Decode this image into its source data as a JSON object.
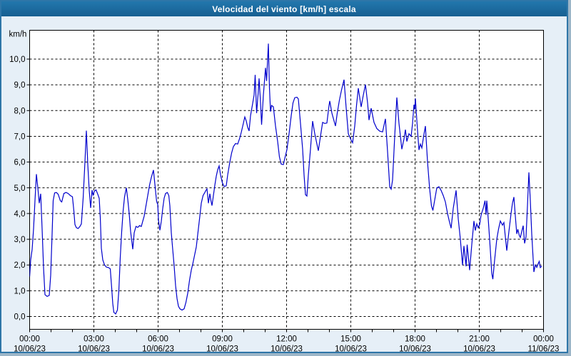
{
  "window": {
    "title": "Velocidad del viento [km/h] escala"
  },
  "colors": {
    "titlebar": "#1c6ba1",
    "title_text": "#ffffff",
    "frame_border": "#2e76a8",
    "window_bg": "#e6eff7",
    "plot_bg": "#ffffff",
    "plot_border": "#000000",
    "grid": "#000000",
    "tick_text": "#000000",
    "line": "#0000cc"
  },
  "chart_data": {
    "type": "line",
    "title": "Velocidad del viento [km/h] escala",
    "xlabel": "",
    "ylabel": "km/h",
    "ylim": [
      0,
      10
    ],
    "x_range_minutes": [
      0,
      1440
    ],
    "grid": true,
    "legend": "none",
    "y_ticks": {
      "values": [
        0,
        1,
        2,
        3,
        4,
        5,
        6,
        7,
        8,
        9,
        10
      ],
      "labels": [
        "0,0",
        "1,0",
        "2,0",
        "3,0",
        "4,0",
        "5,0",
        "6,0",
        "7,0",
        "8,0",
        "9,0",
        "10,0"
      ]
    },
    "x_ticks": {
      "minutes": [
        0,
        180,
        360,
        540,
        720,
        900,
        1080,
        1260,
        1440
      ],
      "time_labels": [
        "00:00",
        "03:00",
        "06:00",
        "09:00",
        "12:00",
        "15:00",
        "18:00",
        "21:00",
        "00:00"
      ],
      "date_labels": [
        "10/06/23",
        "10/06/23",
        "10/06/23",
        "10/06/23",
        "10/06/23",
        "10/06/23",
        "10/06/23",
        "10/06/23",
        "11/06/23"
      ]
    },
    "minor_x_tick_step_minutes": 60,
    "series": [
      {
        "name": "Velocidad del viento",
        "unit": "km/h",
        "points": [
          [
            0,
            1.55
          ],
          [
            3,
            2.2
          ],
          [
            7,
            2.6
          ],
          [
            11,
            3.4
          ],
          [
            15,
            4.5
          ],
          [
            19,
            5.53
          ],
          [
            23,
            5.0
          ],
          [
            27,
            4.4
          ],
          [
            31,
            4.77
          ],
          [
            35,
            3.4
          ],
          [
            39,
            1.9
          ],
          [
            43,
            0.85
          ],
          [
            49,
            0.78
          ],
          [
            55,
            0.82
          ],
          [
            59,
            1.6
          ],
          [
            63,
            3.2
          ],
          [
            66,
            4.5
          ],
          [
            70,
            4.8
          ],
          [
            75,
            4.82
          ],
          [
            80,
            4.75
          ],
          [
            86,
            4.5
          ],
          [
            90,
            4.45
          ],
          [
            96,
            4.78
          ],
          [
            102,
            4.82
          ],
          [
            108,
            4.78
          ],
          [
            114,
            4.7
          ],
          [
            120,
            4.65
          ],
          [
            124,
            4.1
          ],
          [
            127,
            3.57
          ],
          [
            131,
            3.45
          ],
          [
            136,
            3.42
          ],
          [
            141,
            3.5
          ],
          [
            145,
            3.6
          ],
          [
            150,
            4.6
          ],
          [
            155,
            6.0
          ],
          [
            159,
            7.22
          ],
          [
            163,
            5.9
          ],
          [
            167,
            4.9
          ],
          [
            171,
            4.22
          ],
          [
            175,
            4.91
          ],
          [
            178,
            4.7
          ],
          [
            181,
            4.86
          ],
          [
            186,
            4.92
          ],
          [
            191,
            4.75
          ],
          [
            195,
            4.59
          ],
          [
            198,
            3.85
          ],
          [
            201,
            2.65
          ],
          [
            205,
            2.2
          ],
          [
            210,
            2.0
          ],
          [
            215,
            1.92
          ],
          [
            221,
            1.9
          ],
          [
            226,
            1.85
          ],
          [
            230,
            1.1
          ],
          [
            233,
            0.5
          ],
          [
            236,
            0.16
          ],
          [
            241,
            0.1
          ],
          [
            246,
            0.25
          ],
          [
            250,
            1.0
          ],
          [
            254,
            2.3
          ],
          [
            258,
            3.3
          ],
          [
            262,
            4.1
          ],
          [
            266,
            4.65
          ],
          [
            271,
            5.0
          ],
          [
            275,
            4.55
          ],
          [
            279,
            4.0
          ],
          [
            283,
            3.3
          ],
          [
            289,
            2.61
          ],
          [
            293,
            3.25
          ],
          [
            298,
            3.5
          ],
          [
            303,
            3.46
          ],
          [
            308,
            3.53
          ],
          [
            313,
            3.5
          ],
          [
            317,
            3.7
          ],
          [
            321,
            3.9
          ],
          [
            326,
            4.3
          ],
          [
            331,
            4.7
          ],
          [
            336,
            5.1
          ],
          [
            341,
            5.4
          ],
          [
            347,
            5.69
          ],
          [
            352,
            5.0
          ],
          [
            356,
            4.45
          ],
          [
            359,
            4.36
          ],
          [
            361,
            3.76
          ],
          [
            365,
            3.35
          ],
          [
            369,
            3.7
          ],
          [
            373,
            4.2
          ],
          [
            377,
            4.6
          ],
          [
            381,
            4.78
          ],
          [
            386,
            4.82
          ],
          [
            390,
            4.7
          ],
          [
            393,
            4.3
          ],
          [
            397,
            3.25
          ],
          [
            401,
            2.6
          ],
          [
            405,
            1.96
          ],
          [
            409,
            1.2
          ],
          [
            413,
            0.7
          ],
          [
            417,
            0.4
          ],
          [
            421,
            0.3
          ],
          [
            427,
            0.25
          ],
          [
            433,
            0.3
          ],
          [
            438,
            0.55
          ],
          [
            443,
            0.9
          ],
          [
            448,
            1.4
          ],
          [
            453,
            1.8
          ],
          [
            458,
            2.1
          ],
          [
            461,
            2.3
          ],
          [
            467,
            2.7
          ],
          [
            472,
            3.3
          ],
          [
            477,
            3.9
          ],
          [
            481,
            4.4
          ],
          [
            486,
            4.7
          ],
          [
            491,
            4.82
          ],
          [
            494,
            4.9
          ],
          [
            497,
            4.96
          ],
          [
            501,
            4.4
          ],
          [
            505,
            4.77
          ],
          [
            508,
            4.5
          ],
          [
            511,
            4.31
          ],
          [
            515,
            4.7
          ],
          [
            519,
            5.1
          ],
          [
            523,
            5.45
          ],
          [
            527,
            5.7
          ],
          [
            531,
            5.85
          ],
          [
            535,
            5.5
          ],
          [
            540,
            5.2
          ],
          [
            545,
            5.05
          ],
          [
            551,
            5.08
          ],
          [
            555,
            5.5
          ],
          [
            561,
            6.0
          ],
          [
            566,
            6.35
          ],
          [
            571,
            6.6
          ],
          [
            577,
            6.72
          ],
          [
            583,
            6.7
          ],
          [
            588,
            6.9
          ],
          [
            593,
            7.15
          ],
          [
            598,
            7.45
          ],
          [
            603,
            7.75
          ],
          [
            607,
            7.6
          ],
          [
            611,
            7.35
          ],
          [
            615,
            7.21
          ],
          [
            619,
            7.8
          ],
          [
            624,
            8.2
          ],
          [
            629,
            8.6
          ],
          [
            632,
            9.39
          ],
          [
            636,
            7.9
          ],
          [
            640,
            8.6
          ],
          [
            643,
            9.25
          ],
          [
            647,
            8.3
          ],
          [
            650,
            7.45
          ],
          [
            655,
            8.6
          ],
          [
            661,
            9.66
          ],
          [
            664,
            9.15
          ],
          [
            669,
            10.6
          ],
          [
            672,
            8.9
          ],
          [
            675,
            7.96
          ],
          [
            678,
            8.2
          ],
          [
            683,
            8.15
          ],
          [
            689,
            7.4
          ],
          [
            695,
            6.8
          ],
          [
            700,
            6.2
          ],
          [
            705,
            5.92
          ],
          [
            711,
            5.9
          ],
          [
            716,
            6.2
          ],
          [
            721,
            6.48
          ],
          [
            727,
            7.1
          ],
          [
            733,
            7.8
          ],
          [
            738,
            8.3
          ],
          [
            743,
            8.5
          ],
          [
            749,
            8.52
          ],
          [
            753,
            8.45
          ],
          [
            759,
            7.5
          ],
          [
            765,
            6.5
          ],
          [
            769,
            5.5
          ],
          [
            773,
            4.73
          ],
          [
            777,
            4.68
          ],
          [
            781,
            5.5
          ],
          [
            787,
            6.5
          ],
          [
            793,
            7.59
          ],
          [
            799,
            7.1
          ],
          [
            805,
            6.7
          ],
          [
            809,
            6.44
          ],
          [
            815,
            7.0
          ],
          [
            821,
            7.54
          ],
          [
            827,
            7.5
          ],
          [
            833,
            7.52
          ],
          [
            839,
            8.2
          ],
          [
            841,
            8.37
          ],
          [
            847,
            7.9
          ],
          [
            853,
            7.6
          ],
          [
            857,
            7.4
          ],
          [
            862,
            7.9
          ],
          [
            868,
            8.4
          ],
          [
            874,
            8.8
          ],
          [
            881,
            9.2
          ],
          [
            887,
            8.1
          ],
          [
            893,
            7.1
          ],
          [
            901,
            6.85
          ],
          [
            905,
            6.75
          ],
          [
            911,
            7.4
          ],
          [
            916,
            8.2
          ],
          [
            921,
            8.87
          ],
          [
            929,
            8.14
          ],
          [
            935,
            8.6
          ],
          [
            941,
            9.01
          ],
          [
            947,
            8.3
          ],
          [
            951,
            7.63
          ],
          [
            957,
            8.09
          ],
          [
            965,
            7.54
          ],
          [
            973,
            7.3
          ],
          [
            981,
            7.2
          ],
          [
            989,
            7.17
          ],
          [
            997,
            7.68
          ],
          [
            1003,
            6.4
          ],
          [
            1009,
            5.05
          ],
          [
            1013,
            4.95
          ],
          [
            1017,
            5.3
          ],
          [
            1023,
            7.0
          ],
          [
            1029,
            8.51
          ],
          [
            1035,
            7.5
          ],
          [
            1043,
            6.5
          ],
          [
            1049,
            6.9
          ],
          [
            1053,
            7.26
          ],
          [
            1057,
            6.8
          ],
          [
            1063,
            7.1
          ],
          [
            1069,
            7.0
          ],
          [
            1073,
            7.5
          ],
          [
            1077,
            8.23
          ],
          [
            1079,
            8.05
          ],
          [
            1081,
            8.47
          ],
          [
            1086,
            7.4
          ],
          [
            1091,
            6.47
          ],
          [
            1095,
            6.7
          ],
          [
            1099,
            6.55
          ],
          [
            1104,
            7.0
          ],
          [
            1109,
            7.4
          ],
          [
            1115,
            6.0
          ],
          [
            1121,
            4.95
          ],
          [
            1126,
            4.3
          ],
          [
            1130,
            4.12
          ],
          [
            1136,
            4.6
          ],
          [
            1141,
            5.0
          ],
          [
            1147,
            5.04
          ],
          [
            1153,
            4.9
          ],
          [
            1159,
            4.7
          ],
          [
            1165,
            4.45
          ],
          [
            1171,
            4.0
          ],
          [
            1176,
            3.7
          ],
          [
            1181,
            3.43
          ],
          [
            1187,
            4.2
          ],
          [
            1195,
            4.9
          ],
          [
            1201,
            3.8
          ],
          [
            1207,
            3.0
          ],
          [
            1213,
            2.0
          ],
          [
            1217,
            2.74
          ],
          [
            1223,
            1.95
          ],
          [
            1226,
            2.79
          ],
          [
            1233,
            1.8
          ],
          [
            1239,
            2.8
          ],
          [
            1245,
            3.71
          ],
          [
            1249,
            3.34
          ],
          [
            1253,
            3.6
          ],
          [
            1257,
            3.45
          ],
          [
            1261,
            3.57
          ],
          [
            1265,
            3.94
          ],
          [
            1271,
            4.2
          ],
          [
            1276,
            4.5
          ],
          [
            1279,
            3.95
          ],
          [
            1281,
            4.5
          ],
          [
            1285,
            3.8
          ],
          [
            1289,
            3.0
          ],
          [
            1295,
            1.68
          ],
          [
            1298,
            1.45
          ],
          [
            1303,
            2.2
          ],
          [
            1309,
            3.0
          ],
          [
            1314,
            3.4
          ],
          [
            1319,
            3.71
          ],
          [
            1325,
            3.55
          ],
          [
            1329,
            3.65
          ],
          [
            1333,
            3.1
          ],
          [
            1337,
            2.56
          ],
          [
            1343,
            3.3
          ],
          [
            1349,
            4.0
          ],
          [
            1353,
            4.4
          ],
          [
            1357,
            4.64
          ],
          [
            1361,
            3.9
          ],
          [
            1365,
            3.21
          ],
          [
            1368,
            3.39
          ],
          [
            1372,
            3.15
          ],
          [
            1375,
            3.07
          ],
          [
            1379,
            3.3
          ],
          [
            1383,
            3.53
          ],
          [
            1387,
            2.84
          ],
          [
            1391,
            3.1
          ],
          [
            1395,
            4.3
          ],
          [
            1399,
            5.6
          ],
          [
            1403,
            4.5
          ],
          [
            1407,
            3.2
          ],
          [
            1413,
            1.73
          ],
          [
            1417,
            2.0
          ],
          [
            1421,
            1.91
          ],
          [
            1425,
            2.05
          ],
          [
            1428,
            2.14
          ],
          [
            1431,
            1.9
          ],
          [
            1435,
            1.96
          ]
        ]
      }
    ]
  }
}
